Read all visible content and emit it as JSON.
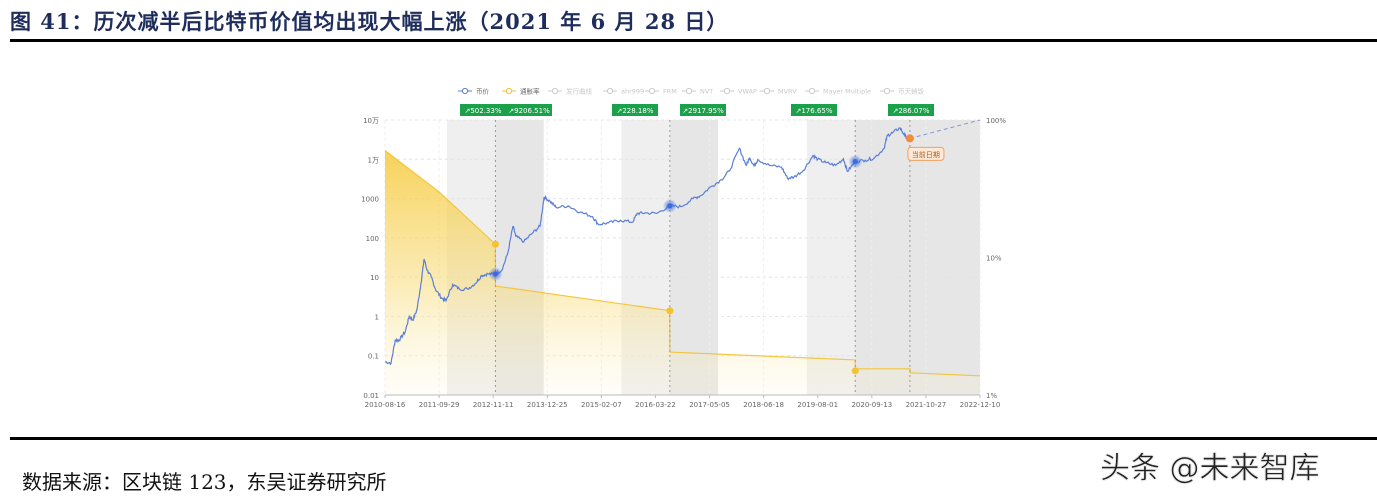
{
  "figure": {
    "title": "图 41：历次减半后比特币价值均出现大幅上涨（2021 年 6 月 28 日）",
    "source": "数据来源：区块链 123，东吴证券研究所",
    "watermark": "头条 @未来智库"
  },
  "chart_data": {
    "type": "line",
    "title": "历次减半后比特币价值均出现大幅上涨（2021 年 6 月 28 日）",
    "xlabel": "",
    "ylabel": "",
    "legend": [
      {
        "name": "币价",
        "color": "#5b7fd6",
        "active": true
      },
      {
        "name": "通胀率",
        "color": "#f2c230",
        "active": true
      },
      {
        "name": "发行曲线",
        "color": "#cccccc",
        "active": false
      },
      {
        "name": "ahr999",
        "color": "#cccccc",
        "active": false
      },
      {
        "name": "FRM",
        "color": "#cccccc",
        "active": false
      },
      {
        "name": "NVT",
        "color": "#cccccc",
        "active": false
      },
      {
        "name": "VWAP",
        "color": "#cccccc",
        "active": false
      },
      {
        "name": "MVRV",
        "color": "#cccccc",
        "active": false
      },
      {
        "name": "Mayer Multiple",
        "color": "#cccccc",
        "active": false
      },
      {
        "name": "币天销毁",
        "color": "#cccccc",
        "active": false
      }
    ],
    "legend_position": "top",
    "grid": true,
    "x_ticks": [
      "2010-08-16",
      "2011-09-29",
      "2012-11-11",
      "2013-12-25",
      "2015-02-07",
      "2016-03-22",
      "2017-05-05",
      "2018-06-18",
      "2019-08-01",
      "2020-09-13",
      "2021-10-27",
      "2022-12-10"
    ],
    "y_left": {
      "scale": "log",
      "ticks": [
        "0.01",
        "0.1",
        "1",
        "10",
        "100",
        "1000",
        "1万",
        "10万"
      ],
      "range": [
        0.01,
        100000
      ]
    },
    "y_right": {
      "scale": "log",
      "ticks": [
        "1%",
        "10%",
        "100%"
      ],
      "range": [
        1,
        100
      ]
    },
    "halving_gains": [
      {
        "label": "502.33%",
        "phase": "pre-halving-1"
      },
      {
        "label": "9206.51%",
        "phase": "post-halving-1"
      },
      {
        "label": "228.18%",
        "phase": "pre-halving-2"
      },
      {
        "label": "2917.95%",
        "phase": "post-halving-2"
      },
      {
        "label": "176.65%",
        "phase": "pre-halving-3"
      },
      {
        "label": "286.07%",
        "phase": "post-halving-3"
      }
    ],
    "halving_dates": [
      "2012-11-28",
      "2016-07-09",
      "2020-05-11"
    ],
    "current_marker": {
      "label": "当前日期",
      "date": "2021-06-28",
      "price": 34000
    },
    "series": [
      {
        "name": "币价",
        "axis": "left",
        "points": [
          [
            "2010-08-16",
            0.07
          ],
          [
            "2010-10-01",
            0.065
          ],
          [
            "2010-11-01",
            0.25
          ],
          [
            "2010-12-01",
            0.25
          ],
          [
            "2011-01-15",
            0.4
          ],
          [
            "2011-02-15",
            1.0
          ],
          [
            "2011-03-15",
            0.8
          ],
          [
            "2011-04-15",
            1.5
          ],
          [
            "2011-05-15",
            7
          ],
          [
            "2011-06-08",
            29
          ],
          [
            "2011-07-01",
            15
          ],
          [
            "2011-08-01",
            10
          ],
          [
            "2011-09-01",
            5
          ],
          [
            "2011-10-15",
            3
          ],
          [
            "2011-11-20",
            2.5
          ],
          [
            "2012-01-10",
            6.5
          ],
          [
            "2012-03-01",
            5
          ],
          [
            "2012-05-01",
            5
          ],
          [
            "2012-07-01",
            7
          ],
          [
            "2012-08-15",
            11
          ],
          [
            "2012-10-01",
            12
          ],
          [
            "2012-11-28",
            12
          ],
          [
            "2013-01-15",
            15
          ],
          [
            "2013-03-01",
            40
          ],
          [
            "2013-04-10",
            200
          ],
          [
            "2013-05-01",
            110
          ],
          [
            "2013-07-01",
            80
          ],
          [
            "2013-09-01",
            130
          ],
          [
            "2013-11-01",
            200
          ],
          [
            "2013-12-01",
            1100
          ],
          [
            "2014-01-15",
            850
          ],
          [
            "2014-03-01",
            600
          ],
          [
            "2014-06-01",
            650
          ],
          [
            "2014-09-01",
            450
          ],
          [
            "2014-12-01",
            350
          ],
          [
            "2015-01-15",
            220
          ],
          [
            "2015-04-01",
            240
          ],
          [
            "2015-07-01",
            280
          ],
          [
            "2015-10-01",
            250
          ],
          [
            "2015-11-05",
            420
          ],
          [
            "2016-01-01",
            430
          ],
          [
            "2016-04-01",
            420
          ],
          [
            "2016-07-09",
            650
          ],
          [
            "2016-10-01",
            620
          ],
          [
            "2017-01-01",
            1000
          ],
          [
            "2017-03-01",
            1200
          ],
          [
            "2017-05-15",
            2000
          ],
          [
            "2017-08-01",
            3000
          ],
          [
            "2017-10-01",
            5000
          ],
          [
            "2017-12-17",
            19000
          ],
          [
            "2018-02-06",
            7000
          ],
          [
            "2018-03-05",
            11000
          ],
          [
            "2018-04-06",
            6800
          ],
          [
            "2018-05-05",
            9800
          ],
          [
            "2018-08-01",
            7000
          ],
          [
            "2018-11-01",
            6300
          ],
          [
            "2018-12-15",
            3300
          ],
          [
            "2019-02-01",
            3500
          ],
          [
            "2019-04-15",
            5200
          ],
          [
            "2019-06-26",
            12500
          ],
          [
            "2019-08-01",
            10000
          ],
          [
            "2019-10-01",
            8200
          ],
          [
            "2019-12-15",
            7000
          ],
          [
            "2020-02-12",
            10300
          ],
          [
            "2020-03-13",
            4900
          ],
          [
            "2020-05-11",
            8700
          ],
          [
            "2020-07-25",
            9500
          ],
          [
            "2020-10-01",
            10700
          ],
          [
            "2020-12-15",
            19000
          ],
          [
            "2021-01-08",
            40000
          ],
          [
            "2021-02-15",
            47000
          ],
          [
            "2021-04-14",
            63000
          ],
          [
            "2021-05-20",
            40000
          ],
          [
            "2021-06-28",
            34000
          ]
        ]
      },
      {
        "name": "通胀率",
        "axis": "right",
        "points": [
          [
            "2010-08-16",
            60
          ],
          [
            "2011-09-29",
            30
          ],
          [
            "2012-11-27",
            12.5
          ],
          [
            "2012-11-28",
            6.2
          ],
          [
            "2016-07-08",
            4.1
          ],
          [
            "2016-07-09",
            2.05
          ],
          [
            "2020-05-10",
            1.8
          ],
          [
            "2020-05-11",
            1.55
          ],
          [
            "2021-06-28",
            1.55
          ],
          [
            "2021-07-01",
            1.45
          ],
          [
            "2022-12-10",
            1.38
          ]
        ]
      },
      {
        "name": "价格预测(虚线)",
        "axis": "left",
        "points": [
          [
            "2021-06-28",
            34000
          ],
          [
            "2022-12-10",
            100000
          ]
        ]
      }
    ],
    "bands": [
      {
        "from": "2011-11-28",
        "to": "2012-11-28",
        "shade": "light"
      },
      {
        "from": "2012-11-28",
        "to": "2013-11-28",
        "shade": "dark"
      },
      {
        "from": "2015-07-09",
        "to": "2016-07-09",
        "shade": "light"
      },
      {
        "from": "2016-07-09",
        "to": "2017-07-09",
        "shade": "dark"
      },
      {
        "from": "2019-05-11",
        "to": "2020-05-11",
        "shade": "light"
      },
      {
        "from": "2020-05-11",
        "to": "2022-12-31",
        "shade": "dark"
      }
    ]
  },
  "colors": {
    "price_line": "#5b7fd6",
    "inflation": "#f2c230",
    "badge_bg": "#1aa14a",
    "marker_orange": "#f08a3c",
    "title_color": "#1f2d5c"
  }
}
